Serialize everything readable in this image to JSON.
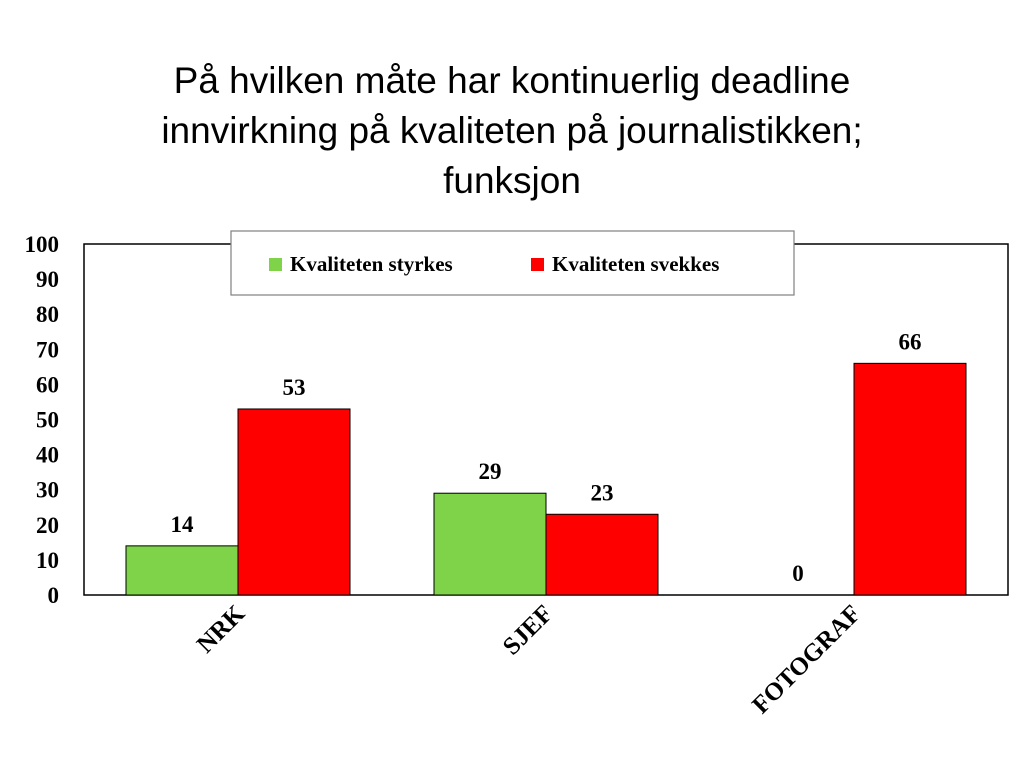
{
  "slide": {
    "title_lines": [
      "På hvilken måte har kontinuerlig deadline",
      "innvirkning på kvaliteten på journalistikken;",
      "funksjon"
    ]
  },
  "chart_data": {
    "type": "bar",
    "categories": [
      "NRK",
      "SJEF",
      "FOTOGRAF"
    ],
    "series": [
      {
        "name": "Kvaliteten styrkes",
        "values": [
          14,
          29,
          0
        ],
        "color": "#7ed348"
      },
      {
        "name": "Kvaliteten svekkes",
        "values": [
          53,
          23,
          66
        ],
        "color": "#ff0000"
      }
    ],
    "ylim": [
      0,
      100
    ],
    "yticks": [
      0,
      10,
      20,
      30,
      40,
      50,
      60,
      70,
      80,
      90,
      100
    ],
    "grid": false,
    "legend_position": "top",
    "data_labels": true
  }
}
